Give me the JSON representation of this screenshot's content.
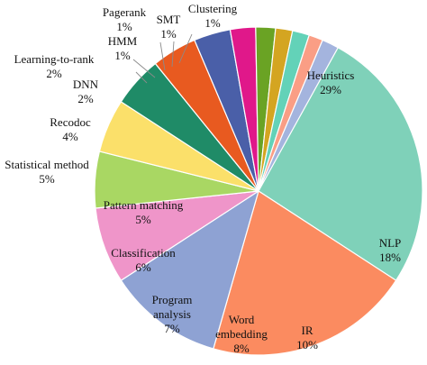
{
  "chart_data": {
    "type": "pie",
    "title": "",
    "slices": [
      {
        "name": "Heuristics",
        "value": "29%",
        "color": "#7fd1b9"
      },
      {
        "name": "NLP",
        "value": "18%",
        "color": "#fb8b60"
      },
      {
        "name": "IR",
        "value": "10%",
        "color": "#8ea2d3"
      },
      {
        "name": "Word embedding",
        "name_lines": [
          "Word",
          "embedding"
        ],
        "value": "8%",
        "color": "#ef95c9"
      },
      {
        "name": "Program analysis",
        "name_lines": [
          "Program",
          "analysis"
        ],
        "value": "7%",
        "color": "#a9d763"
      },
      {
        "name": "Classification",
        "value": "6%",
        "color": "#fbe06a"
      },
      {
        "name": "Pattern matching",
        "value": "5%",
        "color": "#1f8b67"
      },
      {
        "name": "Statistical method",
        "value": "5%",
        "color": "#e85a20"
      },
      {
        "name": "Recodoc",
        "value": "4%",
        "color": "#4a5fa8"
      },
      {
        "name": "DNN",
        "value": "2%",
        "color": "#e0188a"
      },
      {
        "name": "Learning-to-rank",
        "value": "2%",
        "color": "#6aa324"
      },
      {
        "name": "HMM",
        "value": "1%",
        "color": "#d4a521"
      },
      {
        "name": "Pagerank",
        "value": "1%",
        "color": "#63d2b8"
      },
      {
        "name": "SMT",
        "value": "1%",
        "color": "#fa9e85"
      },
      {
        "name": "Clustering",
        "value": "1%",
        "color": "#a4b4de"
      }
    ]
  }
}
